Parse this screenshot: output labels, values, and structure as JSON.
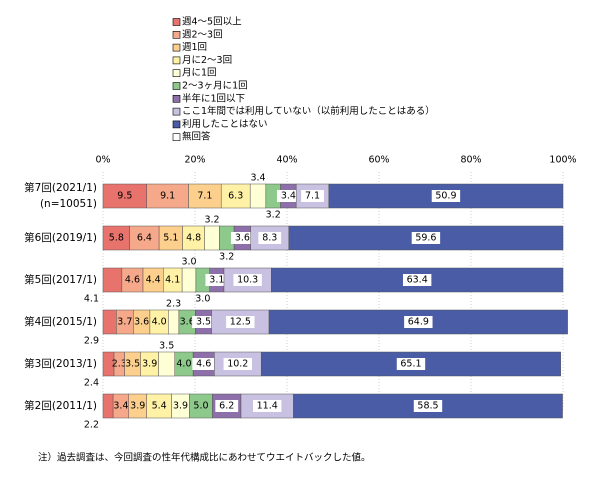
{
  "chart_data": {
    "type": "stacked_barh",
    "categories": [
      "第7回(2021/1)",
      "第6回(2019/1)",
      "第5回(2017/1)",
      "第4回(2015/1)",
      "第3回(2013/1)",
      "第2回(2011/1)"
    ],
    "category_note": "(n=10051)",
    "xlim": [
      0,
      100
    ],
    "xticks": [
      {
        "value": 0,
        "label": "0%"
      },
      {
        "value": 20,
        "label": "20%"
      },
      {
        "value": 40,
        "label": "40%"
      },
      {
        "value": 60,
        "label": "60%"
      },
      {
        "value": 80,
        "label": "80%"
      },
      {
        "value": 100,
        "label": "100%"
      }
    ],
    "grid": true,
    "series": [
      {
        "name": "週4～5回以上",
        "color": "#e8736c",
        "values": [
          9.5,
          5.8,
          4.1,
          2.9,
          2.4,
          2.2
        ],
        "value_labels": [
          "9.5",
          "5.8",
          "4.1",
          "2.9",
          "2.4",
          "2.2"
        ]
      },
      {
        "name": "週2～3回",
        "color": "#f5a88a",
        "values": [
          9.1,
          6.4,
          4.6,
          3.7,
          2.3,
          3.4
        ],
        "value_labels": [
          "9.1",
          "6.4",
          "4.6",
          "3.7",
          "2.3",
          "3.4"
        ]
      },
      {
        "name": "週1回",
        "color": "#fcd08c",
        "values": [
          7.1,
          5.1,
          4.4,
          3.6,
          3.5,
          3.9
        ],
        "value_labels": [
          "7.1",
          "5.1",
          "4.4",
          "3.6",
          "3.5",
          "3.9"
        ]
      },
      {
        "name": "月に2～3回",
        "color": "#fff2a6",
        "values": [
          6.3,
          4.8,
          4.1,
          4.0,
          3.9,
          5.4
        ],
        "value_labels": [
          "6.3",
          "4.8",
          "4.1",
          "4.0",
          "3.9",
          "5.4"
        ]
      },
      {
        "name": "月に1回",
        "color": "#ffffd6",
        "values": [
          3.4,
          3.2,
          3.0,
          2.3,
          3.5,
          3.9
        ],
        "value_labels": [
          "3.4",
          "3.2",
          "3.0",
          "2.3",
          "3.5",
          "3.9"
        ]
      },
      {
        "name": "2～3ヶ月に1回",
        "color": "#8ec98c",
        "values": [
          3.2,
          3.2,
          3.0,
          3.6,
          4.0,
          5.0
        ],
        "value_labels": [
          "3.2",
          "3.2",
          "3.0",
          "3.6",
          "4.0",
          "5.0"
        ]
      },
      {
        "name": "半年に1回以下",
        "color": "#8d70a9",
        "values": [
          3.4,
          3.6,
          3.1,
          3.5,
          4.6,
          6.2
        ],
        "value_labels": [
          "3.4",
          "3.6",
          "3.1",
          "3.5",
          "4.6",
          "6.2"
        ]
      },
      {
        "name": "ここ1年間では利用していない（以前利用したことはある）",
        "color": "#c9c1e1",
        "values": [
          7.1,
          8.3,
          10.3,
          12.5,
          10.2,
          11.4
        ],
        "value_labels": [
          "7.1",
          "8.3",
          "10.3",
          "12.5",
          "10.2",
          "11.4"
        ]
      },
      {
        "name": "利用したことはない",
        "color": "#4a5ca6",
        "values": [
          50.9,
          59.6,
          63.4,
          64.9,
          65.1,
          58.5
        ],
        "value_labels": [
          "50.9",
          "59.6",
          "63.4",
          "64.9",
          "65.1",
          "58.5"
        ]
      },
      {
        "name": "無回答",
        "color": "#ffffff",
        "values": [
          null,
          null,
          null,
          null,
          null,
          null
        ]
      }
    ],
    "note": "注）過去調査は、今回調査の性年代構成比にあわせてウエイトバックした値。"
  }
}
